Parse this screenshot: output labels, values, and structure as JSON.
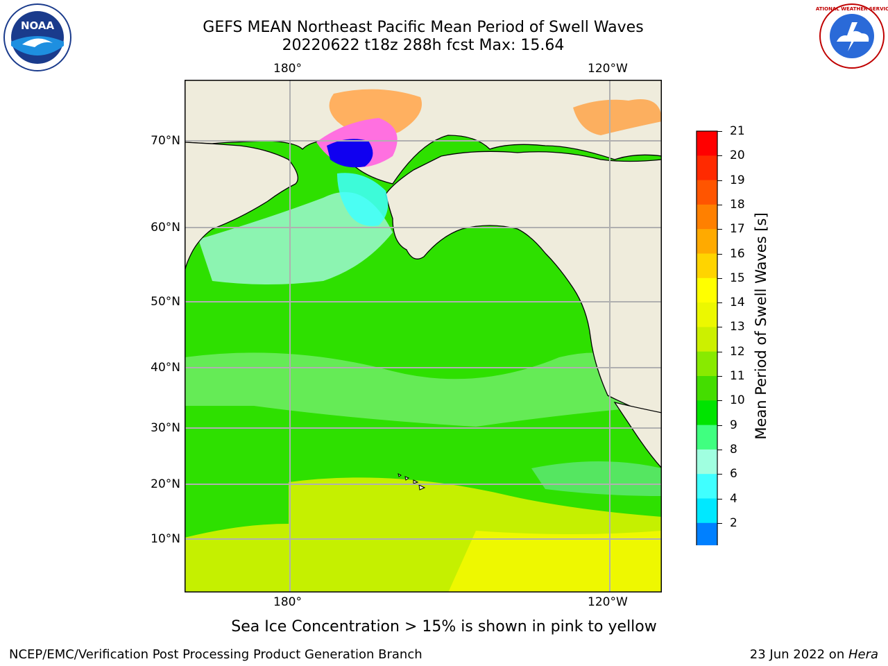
{
  "header": {
    "title_line1": "GEFS MEAN Northeast Pacific Mean Period of Swell Waves",
    "title_line2": "20220622 t18z 288h fcst   Max: 15.64"
  },
  "logos": {
    "left_text": "NOAA",
    "right_text": "NATIONAL WEATHER SERVICE"
  },
  "map": {
    "top_lon_ticks": [
      "180°",
      "120°W"
    ],
    "bottom_lon_ticks": [
      "180°",
      "120°W"
    ],
    "lat_ticks": [
      "70°N",
      "60°N",
      "50°N",
      "40°N",
      "30°N",
      "20°N",
      "10°N"
    ],
    "land_color": "#efecdc",
    "grid_color": "#b0b0b0"
  },
  "colorbar": {
    "label": "Mean Period of Swell Waves [s]",
    "ticks": [
      "21",
      "20",
      "19",
      "18",
      "17",
      "16",
      "15",
      "14",
      "13",
      "12",
      "11",
      "10",
      "9",
      "8",
      "6",
      "4",
      "2"
    ],
    "colors": [
      "#ff0000",
      "#ff2a00",
      "#ff5500",
      "#ff8000",
      "#ffaa00",
      "#ffd400",
      "#ffff00",
      "#ecf800",
      "#ccf000",
      "#88ea00",
      "#44dd00",
      "#00e400",
      "#40ff80",
      "#a0ffe0",
      "#40ffff",
      "#00e8ff",
      "#0080ff",
      "#0000ee"
    ]
  },
  "caption": "Sea Ice Concentration > 15% is shown in pink to yellow",
  "footer": {
    "left": "NCEP/EMC/Verification Post Processing Product Generation Branch",
    "right_prefix": "23 Jun 2022 on ",
    "right_host": "Hera"
  }
}
